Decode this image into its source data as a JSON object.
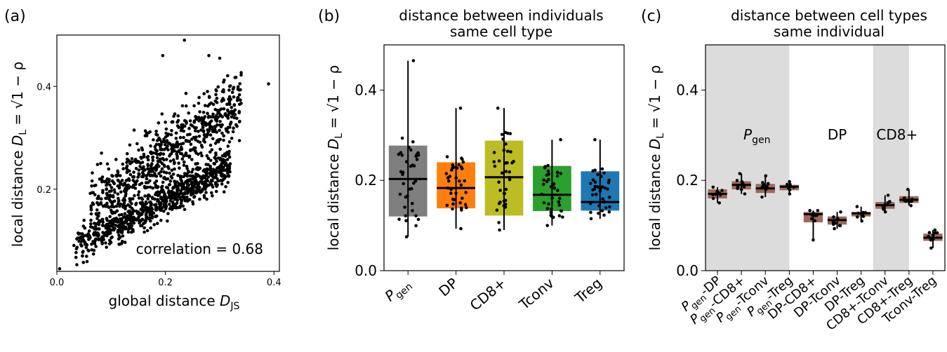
{
  "chart_data": [
    {
      "panel_label": "(a)",
      "type": "scatter",
      "title": "",
      "xlabel_text": "global distance ",
      "xlabel_symbol": "D",
      "xlabel_sub": "JS",
      "ylabel_text": "local distance ",
      "ylabel_symbol": "D",
      "ylabel_sub": "L",
      "ylabel_eq": " = √1 − ρ",
      "xlim": [
        0,
        0.41
      ],
      "ylim": [
        0.04,
        0.5
      ],
      "xticks": [
        0.0,
        0.2,
        0.4
      ],
      "xtick_labels": [
        "0.0",
        "0.2",
        "0.4"
      ],
      "yticks": [
        0.2,
        0.4
      ],
      "ytick_labels": [
        "0.2",
        "0.4"
      ],
      "annotation": "correlation  = 0.68",
      "correlation": 0.68,
      "n_points_approx": 1500,
      "cloud": {
        "x_range": [
          0.005,
          0.39
        ],
        "y_range": [
          0.045,
          0.49
        ],
        "description_values": "points concentrated along x 0.05-0.3, y 0.1-0.35"
      },
      "notable_points": [
        {
          "x": 0.005,
          "y": 0.045
        },
        {
          "x": 0.235,
          "y": 0.49
        },
        {
          "x": 0.195,
          "y": 0.46
        },
        {
          "x": 0.39,
          "y": 0.405
        },
        {
          "x": 0.28,
          "y": 0.46
        },
        {
          "x": 0.3,
          "y": 0.455
        }
      ]
    },
    {
      "panel_label": "(b)",
      "type": "box",
      "title_lines": [
        "distance between individuals",
        "same cell type"
      ],
      "ylabel_text": "local distance ",
      "ylabel_symbol": "D",
      "ylabel_sub": "L",
      "ylabel_eq": " = √1 − ρ",
      "ylim": [
        0.0,
        0.5
      ],
      "yticks": [
        0.0,
        0.2,
        0.4
      ],
      "ytick_labels": [
        "0.0",
        "0.2",
        "0.4"
      ],
      "categories": [
        "P",
        "DP",
        "CD8+",
        "Tconv",
        "Treg"
      ],
      "category_subs": [
        "gen",
        "",
        "",
        "",
        ""
      ],
      "colors": [
        "#7f7f7f",
        "#ff7f0e",
        "#bcbd22",
        "#2ca02c",
        "#1f77b4"
      ],
      "boxes": [
        {
          "q1": 0.12,
          "median": 0.203,
          "q3": 0.277,
          "min": 0.075,
          "max": 0.465
        },
        {
          "q1": 0.138,
          "median": 0.183,
          "q3": 0.24,
          "min": 0.093,
          "max": 0.36
        },
        {
          "q1": 0.122,
          "median": 0.207,
          "q3": 0.288,
          "min": 0.09,
          "max": 0.36
        },
        {
          "q1": 0.132,
          "median": 0.168,
          "q3": 0.232,
          "min": 0.1,
          "max": 0.29
        },
        {
          "q1": 0.133,
          "median": 0.152,
          "q3": 0.22,
          "min": 0.115,
          "max": 0.29
        }
      ]
    },
    {
      "panel_label": "(c)",
      "type": "box",
      "title_lines": [
        "distance between cell types",
        "same individual"
      ],
      "ylabel_text": "local distance ",
      "ylabel_symbol": "D",
      "ylabel_sub": "L",
      "ylabel_eq": " = √1 − ρ",
      "ylim": [
        0.0,
        0.5
      ],
      "yticks": [
        0.0,
        0.2,
        0.4
      ],
      "ytick_labels": [
        "0.0",
        "0.2",
        "0.4"
      ],
      "box_color": "#a0685a",
      "shade_color": "#dcdcdc",
      "shaded_ranges": [
        [
          0,
          3
        ],
        [
          7,
          8
        ]
      ],
      "group_labels": [
        {
          "text": "P",
          "sub": "gen",
          "after_index": 2
        },
        {
          "text": "DP",
          "sub": "",
          "after_index": 5
        },
        {
          "text": "CD8+",
          "sub": "",
          "after_index": 7.5
        }
      ],
      "categories": [
        {
          "parts": [
            [
              "P",
              false
            ],
            [
              "gen",
              true
            ],
            [
              "-DP",
              false
            ]
          ]
        },
        {
          "parts": [
            [
              "P",
              false
            ],
            [
              "gen",
              true
            ],
            [
              "-CD8+",
              false
            ]
          ]
        },
        {
          "parts": [
            [
              "P",
              false
            ],
            [
              "gen",
              true
            ],
            [
              "-Tconv",
              false
            ]
          ]
        },
        {
          "parts": [
            [
              "P",
              false
            ],
            [
              "gen",
              true
            ],
            [
              "-Treg",
              false
            ]
          ]
        },
        {
          "parts": [
            [
              "DP-CD8+",
              false
            ]
          ]
        },
        {
          "parts": [
            [
              "DP-Tconv",
              false
            ]
          ]
        },
        {
          "parts": [
            [
              "DP-Treg",
              false
            ]
          ]
        },
        {
          "parts": [
            [
              "CD8+-Tconv",
              false
            ]
          ]
        },
        {
          "parts": [
            [
              "CD8+-Treg",
              false
            ]
          ]
        },
        {
          "parts": [
            [
              "Tconv-Treg",
              false
            ]
          ]
        }
      ],
      "boxes": [
        {
          "q1": 0.16,
          "median": 0.17,
          "q3": 0.18,
          "min": 0.15,
          "max": 0.185
        },
        {
          "q1": 0.18,
          "median": 0.19,
          "q3": 0.198,
          "min": 0.17,
          "max": 0.215
        },
        {
          "q1": 0.172,
          "median": 0.182,
          "q3": 0.192,
          "min": 0.163,
          "max": 0.21
        },
        {
          "q1": 0.178,
          "median": 0.186,
          "q3": 0.19,
          "min": 0.17,
          "max": 0.197
        },
        {
          "q1": 0.107,
          "median": 0.125,
          "q3": 0.13,
          "min": 0.068,
          "max": 0.133
        },
        {
          "q1": 0.102,
          "median": 0.112,
          "q3": 0.12,
          "min": 0.093,
          "max": 0.13
        },
        {
          "q1": 0.12,
          "median": 0.127,
          "q3": 0.13,
          "min": 0.11,
          "max": 0.142
        },
        {
          "q1": 0.137,
          "median": 0.145,
          "q3": 0.152,
          "min": 0.13,
          "max": 0.167
        },
        {
          "q1": 0.15,
          "median": 0.157,
          "q3": 0.165,
          "min": 0.144,
          "max": 0.18
        },
        {
          "q1": 0.066,
          "median": 0.073,
          "q3": 0.082,
          "min": 0.05,
          "max": 0.09
        }
      ]
    }
  ]
}
